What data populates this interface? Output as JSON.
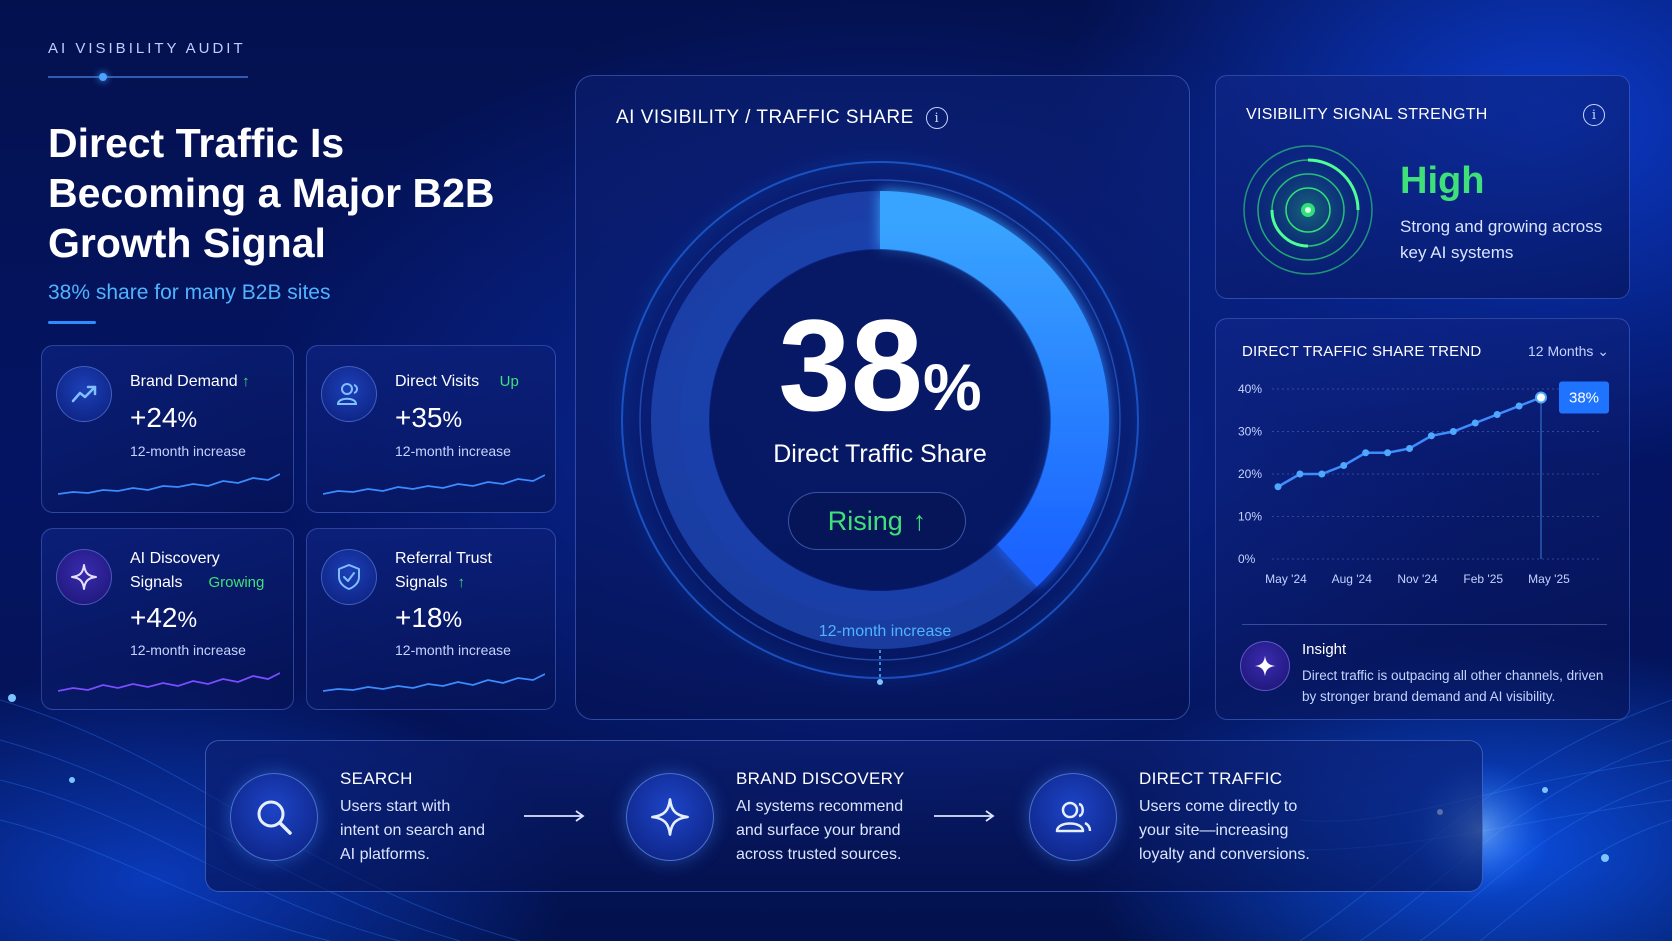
{
  "header": {
    "eyebrow": "AI VISIBILITY AUDIT",
    "title": "Direct Traffic Is Becoming a Major B2B Growth Signal",
    "subtitle": "38% share for many B2B sites"
  },
  "metrics": [
    {
      "label": "Brand Demand",
      "status": "",
      "value": "+24",
      "unit": "%",
      "note": "12-month increase",
      "icon": "trend-up-icon",
      "trend": "up"
    },
    {
      "label": "Direct Visits",
      "status": "Up",
      "value": "+35",
      "unit": "%",
      "note": "12-month increase",
      "icon": "user-icon",
      "trend": "up"
    },
    {
      "label": "AI Discovery",
      "label2": "Signals",
      "status": "Growing",
      "value": "+42",
      "unit": "%",
      "note": "12-month increase",
      "icon": "sparkle-icon",
      "trend": "up"
    },
    {
      "label": "Referral Trust",
      "label2": "Signals",
      "status": "",
      "value": "+18",
      "unit": "%",
      "note": "12-month increase",
      "icon": "shield-icon",
      "trend": "up"
    }
  ],
  "center": {
    "title": "AI VISIBILITY / TRAFFIC SHARE",
    "value": "38",
    "unit": "%",
    "label": "Direct Traffic Share",
    "status": "Rising",
    "note": "12-month increase",
    "share": 0.38
  },
  "signal": {
    "title": "VISIBILITY SIGNAL STRENGTH",
    "value": "High",
    "description": "Strong and growing across key AI systems"
  },
  "trend": {
    "title": "DIRECT TRAFFIC SHARE TREND",
    "range": "12 Months",
    "insight_title": "Insight",
    "insight_text": "Direct traffic is outpacing all other channels, driven by stronger brand demand and AI visibility."
  },
  "chart_data": {
    "type": "line",
    "title": "DIRECT TRAFFIC SHARE TREND",
    "x": [
      "May '24",
      "Jun '24",
      "Jul '24",
      "Aug '24",
      "Sep '24",
      "Oct '24",
      "Nov '24",
      "Dec '24",
      "Jan '25",
      "Feb '25",
      "Mar '25",
      "Apr '25",
      "May '25"
    ],
    "x_tick_labels": [
      "May '24",
      "Aug '24",
      "Nov '24",
      "Feb '25",
      "May '25"
    ],
    "y_tick_labels": [
      "0%",
      "10%",
      "20%",
      "30%",
      "40%"
    ],
    "series": [
      {
        "values": [
          17,
          20,
          20,
          22,
          25,
          25,
          26,
          29,
          30,
          32,
          34,
          36,
          38
        ]
      }
    ],
    "ylim": [
      0,
      40
    ],
    "highlight_label": "38%",
    "grid": true,
    "legend": "none"
  },
  "flow": [
    {
      "title": "SEARCH",
      "text": "Users start with intent on search and AI platforms.",
      "icon": "search-icon"
    },
    {
      "title": "BRAND DISCOVERY",
      "text": "AI systems recommend and surface your brand across trusted sources.",
      "icon": "sparkle-icon"
    },
    {
      "title": "DIRECT TRAFFIC",
      "text": "Users come directly to your site—increasing loyalty and conversions.",
      "icon": "users-icon"
    }
  ],
  "colors": {
    "accent": "#2f8cff",
    "positive": "#3fe07a",
    "highlight": "#4fb3ff",
    "background": "#041463"
  }
}
